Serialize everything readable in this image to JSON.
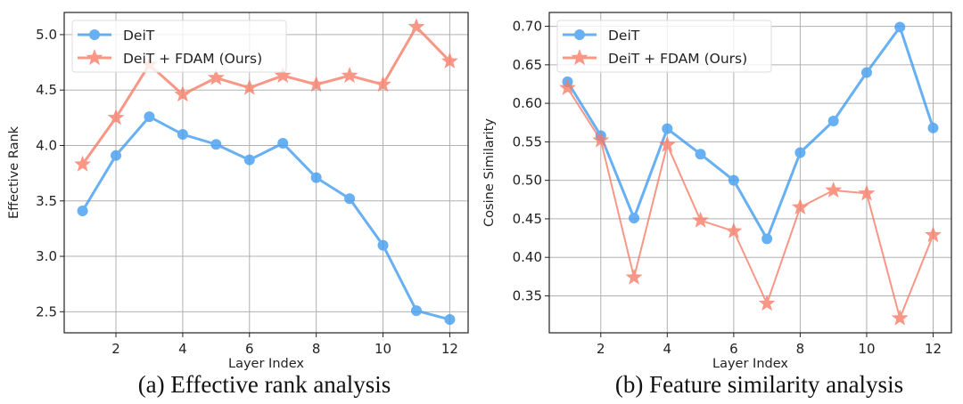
{
  "chart_data": [
    {
      "type": "line",
      "caption": "(a) Effective rank analysis",
      "xlabel": "Layer Index",
      "ylabel": "Effective Rank",
      "x": [
        1,
        2,
        3,
        4,
        5,
        6,
        7,
        8,
        9,
        10,
        11,
        12
      ],
      "xticks": [
        2,
        4,
        6,
        8,
        10,
        12
      ],
      "yticks": [
        "2.5",
        "3.0",
        "3.5",
        "4.0",
        "4.5",
        "5.0"
      ],
      "xlim": [
        0.45,
        12.55
      ],
      "ylim": [
        2.31,
        5.2
      ],
      "grid": true,
      "legend": "top-left",
      "series": [
        {
          "name": "DeiT",
          "marker": "circle",
          "color": "#3d9af0",
          "values": [
            3.41,
            3.91,
            4.26,
            4.1,
            4.01,
            3.87,
            4.02,
            3.71,
            3.52,
            3.1,
            2.51,
            2.43
          ]
        },
        {
          "name": "DeiT + FDAM (Ours)",
          "marker": "star",
          "color": "#f87a66",
          "values": [
            3.83,
            4.25,
            4.73,
            4.46,
            4.61,
            4.52,
            4.63,
            4.55,
            4.63,
            4.55,
            5.07,
            4.76
          ]
        }
      ]
    },
    {
      "type": "line",
      "caption": "(b) Feature similarity analysis",
      "xlabel": "Layer Index",
      "ylabel": "Cosine Similarity",
      "x": [
        1,
        2,
        3,
        4,
        5,
        6,
        7,
        8,
        9,
        10,
        11,
        12
      ],
      "xticks": [
        2,
        4,
        6,
        8,
        10,
        12
      ],
      "yticks": [
        "0.35",
        "0.40",
        "0.45",
        "0.50",
        "0.55",
        "0.60",
        "0.65",
        "0.70"
      ],
      "xlim": [
        0.45,
        12.55
      ],
      "ylim": [
        0.302,
        0.718
      ],
      "grid": true,
      "legend": "top-left",
      "series": [
        {
          "name": "DeiT",
          "marker": "circle",
          "color": "#3d9af0",
          "values": [
            0.628,
            0.558,
            0.451,
            0.567,
            0.534,
            0.5,
            0.424,
            0.536,
            0.577,
            0.64,
            0.699,
            0.568
          ]
        },
        {
          "name": "DeiT + FDAM (Ours)",
          "marker": "star",
          "color": "#f87a66",
          "values": [
            0.62,
            0.552,
            0.374,
            0.546,
            0.448,
            0.434,
            0.34,
            0.465,
            0.487,
            0.483,
            0.321,
            0.429
          ]
        }
      ]
    }
  ]
}
